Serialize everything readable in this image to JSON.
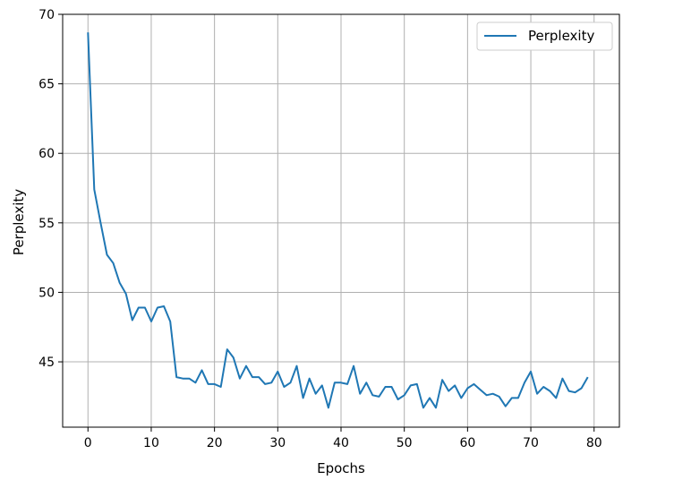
{
  "chart_data": {
    "type": "line",
    "title": "",
    "xlabel": "Epochs",
    "ylabel": "Perplexity",
    "xlim": [
      -4,
      84
    ],
    "ylim": [
      40.3,
      70
    ],
    "xticks": [
      0,
      10,
      20,
      30,
      40,
      50,
      60,
      70,
      80
    ],
    "yticks": [
      45,
      50,
      55,
      60,
      65,
      70
    ],
    "grid": true,
    "legend_position": "top-right",
    "series": [
      {
        "name": "Perplexity",
        "color": "#1f77b4",
        "x": [
          0,
          1,
          2,
          3,
          4,
          5,
          6,
          7,
          8,
          9,
          10,
          11,
          12,
          13,
          14,
          15,
          16,
          17,
          18,
          19,
          20,
          21,
          22,
          23,
          24,
          25,
          26,
          27,
          28,
          29,
          30,
          31,
          32,
          33,
          34,
          35,
          36,
          37,
          38,
          39,
          40,
          41,
          42,
          43,
          44,
          45,
          46,
          47,
          48,
          49,
          50,
          51,
          52,
          53,
          54,
          55,
          56,
          57,
          58,
          59,
          60,
          61,
          62,
          63,
          64,
          65,
          66,
          67,
          68,
          69,
          70,
          71,
          72,
          73,
          74,
          75,
          76,
          77,
          78,
          79
        ],
        "values": [
          68.7,
          57.4,
          55.0,
          52.7,
          52.1,
          50.7,
          49.9,
          48.0,
          48.9,
          48.9,
          47.9,
          48.9,
          49.0,
          47.9,
          43.9,
          43.8,
          43.8,
          43.5,
          44.4,
          43.4,
          43.4,
          43.2,
          45.9,
          45.3,
          43.8,
          44.7,
          43.9,
          43.9,
          43.4,
          43.5,
          44.3,
          43.2,
          43.5,
          44.7,
          42.4,
          43.8,
          42.7,
          43.3,
          41.7,
          43.5,
          43.5,
          43.4,
          44.7,
          42.7,
          43.5,
          42.6,
          42.5,
          43.2,
          43.2,
          42.3,
          42.6,
          43.3,
          43.4,
          41.7,
          42.4,
          41.7,
          43.7,
          42.9,
          43.3,
          42.4,
          43.1,
          43.4,
          43.0,
          42.6,
          42.7,
          42.5,
          41.8,
          42.4,
          42.4,
          43.5,
          44.3,
          42.7,
          43.2,
          42.9,
          42.4,
          43.8,
          42.9,
          42.8,
          43.1,
          43.9
        ]
      }
    ]
  }
}
